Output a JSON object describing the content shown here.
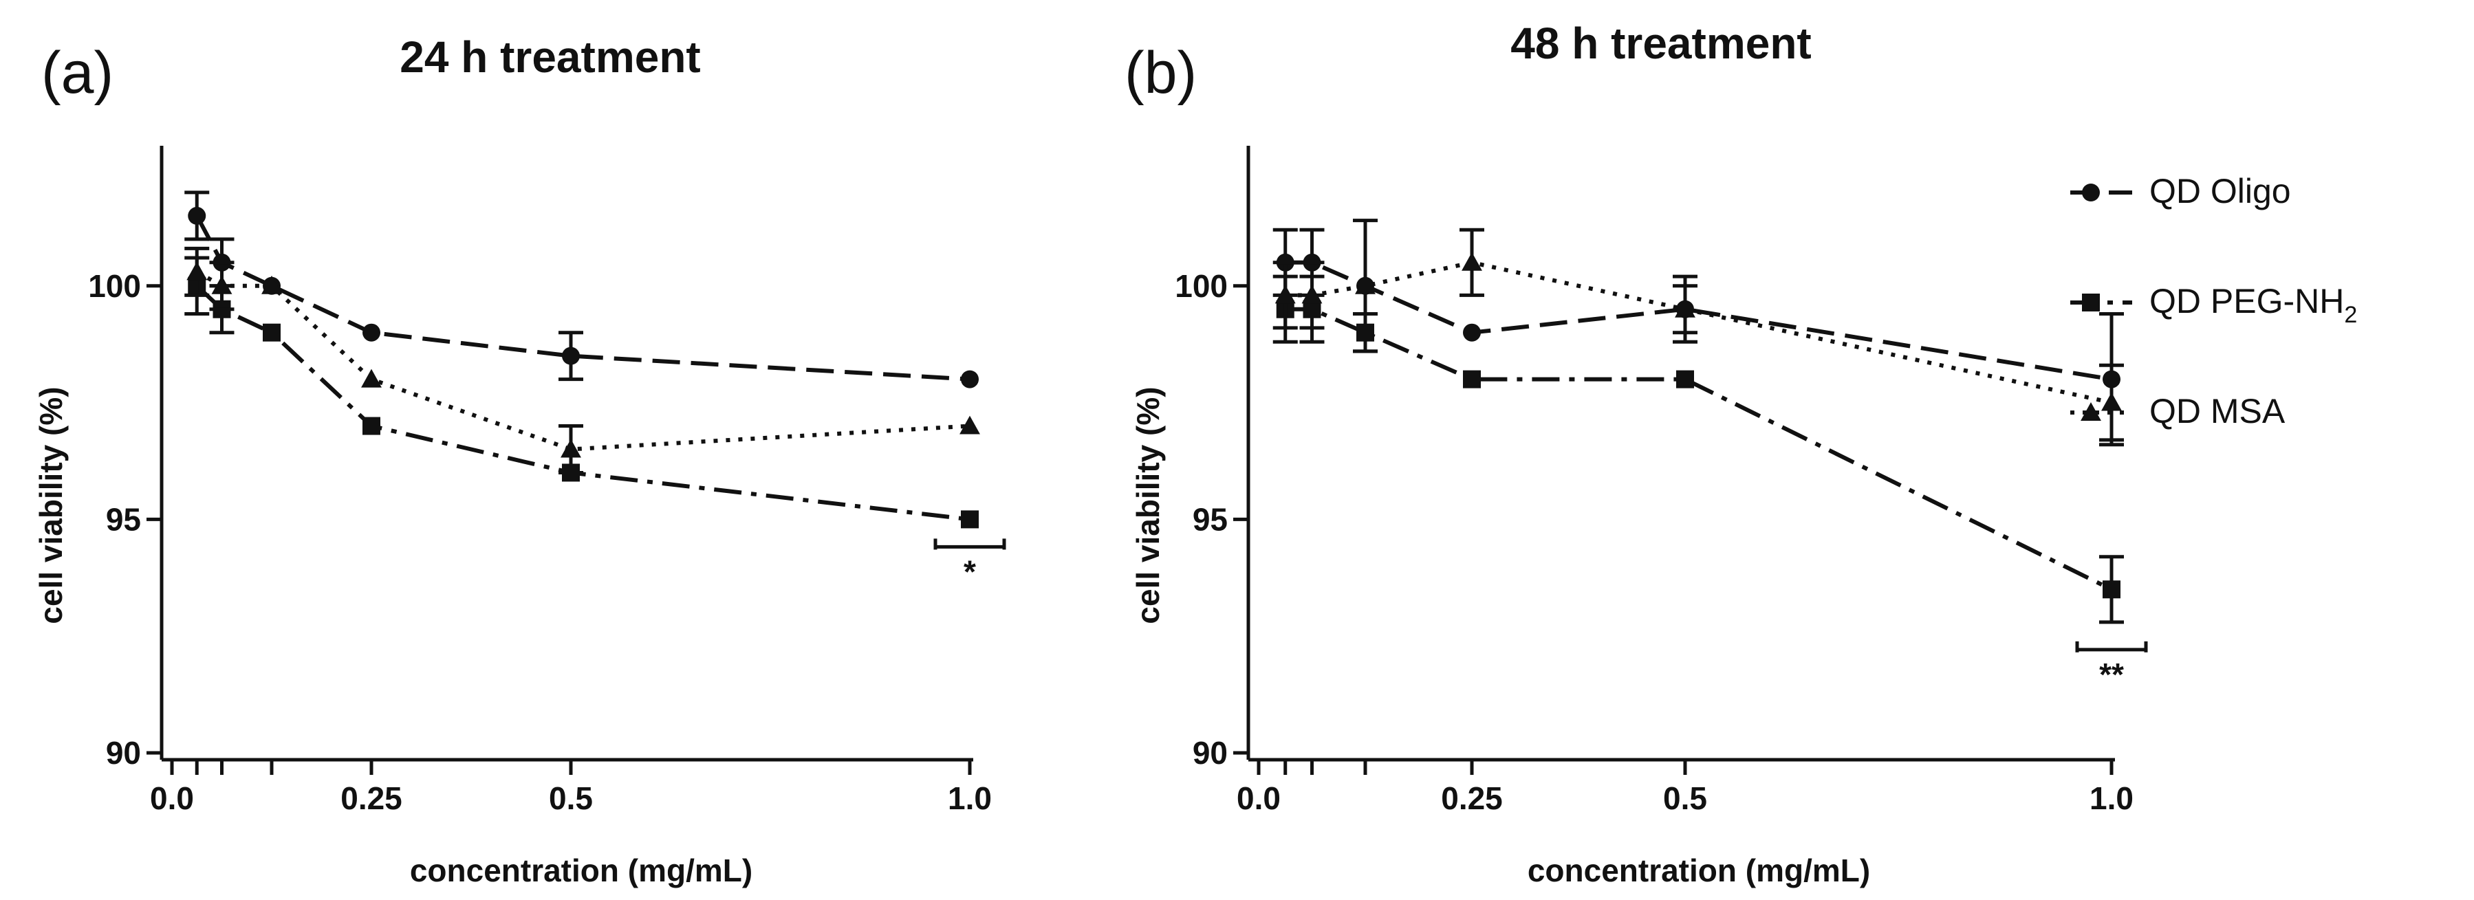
{
  "chart_data": [
    {
      "type": "line",
      "panel_label": "(a)",
      "title": "24 h  treatment",
      "xlabel": "concentration (mg/mL)",
      "ylabel": "cell viability (%)",
      "xlim": [
        0,
        1.0
      ],
      "ylim": [
        90,
        103
      ],
      "x_ticks": [
        0.0,
        0.25,
        0.5,
        1.0
      ],
      "x_tick_labels": [
        "0.0",
        "0.25",
        "0.5",
        "1.0"
      ],
      "x_minor_ticks": [
        0.03125,
        0.0625,
        0.125
      ],
      "y_ticks": [
        90,
        95,
        100
      ],
      "y_tick_labels": [
        "90",
        "95",
        "100"
      ],
      "x": [
        0.03125,
        0.0625,
        0.125,
        0.25,
        0.5,
        1.0
      ],
      "series": [
        {
          "name": "QD Oligo",
          "marker": "circle",
          "dash": "dashed",
          "values": [
            101.5,
            100.5,
            100.0,
            99.0,
            98.5,
            98.0
          ],
          "errors": [
            0.5,
            0.5,
            0,
            0,
            0.5,
            0
          ]
        },
        {
          "name": "QD PEG-NH2",
          "marker": "square",
          "dash": "dashdot",
          "values": [
            100.0,
            99.5,
            99.0,
            97.0,
            96.0,
            95.0
          ],
          "errors": [
            0.6,
            0.5,
            0,
            0,
            0,
            0
          ]
        },
        {
          "name": "QD MSA",
          "marker": "triangle",
          "dash": "dotted",
          "values": [
            100.3,
            100.0,
            100.0,
            98.0,
            96.5,
            97.0
          ],
          "errors": [
            0.5,
            0.5,
            0,
            0,
            0.5,
            0
          ]
        }
      ],
      "annotations": [
        {
          "text": "*",
          "x": 1.0
        }
      ]
    },
    {
      "type": "line",
      "panel_label": "(b)",
      "title": "48 h  treatment",
      "xlabel": "concentration (mg/mL)",
      "ylabel": "cell viability (%)",
      "xlim": [
        0,
        1.0
      ],
      "ylim": [
        90,
        103
      ],
      "x_ticks": [
        0.0,
        0.25,
        0.5,
        1.0
      ],
      "x_tick_labels": [
        "0.0",
        "0.25",
        "0.5",
        "1.0"
      ],
      "x_minor_ticks": [
        0.03125,
        0.0625,
        0.125
      ],
      "y_ticks": [
        90,
        95,
        100
      ],
      "y_tick_labels": [
        "90",
        "95",
        "100"
      ],
      "x": [
        0.03125,
        0.0625,
        0.125,
        0.25,
        0.5,
        1.0
      ],
      "series": [
        {
          "name": "QD Oligo",
          "marker": "circle",
          "dash": "dashed",
          "values": [
            100.5,
            100.5,
            100.0,
            99.0,
            99.5,
            98.0
          ],
          "errors": [
            0.7,
            0.7,
            0,
            0,
            0.7,
            1.4
          ]
        },
        {
          "name": "QD PEG-NH2",
          "marker": "square",
          "dash": "dashdot",
          "values": [
            99.5,
            99.5,
            99.0,
            98.0,
            98.0,
            93.5
          ],
          "errors": [
            0.7,
            0.7,
            0.4,
            0,
            0,
            0.7
          ]
        },
        {
          "name": "QD MSA",
          "marker": "triangle",
          "dash": "dotted",
          "values": [
            99.8,
            99.8,
            100.0,
            100.5,
            99.5,
            97.5
          ],
          "errors": [
            0.7,
            0.7,
            1.4,
            0.7,
            0.5,
            0.8
          ]
        }
      ],
      "annotations": [
        {
          "text": "**",
          "x": 1.0
        }
      ]
    }
  ],
  "legend": {
    "position": "right",
    "entries": [
      {
        "label": "QD Oligo",
        "marker": "circle",
        "dash": "dashed"
      },
      {
        "label_main": "QD PEG-NH",
        "label_sub": "2",
        "marker": "square",
        "dash": "dashdot"
      },
      {
        "label": "QD MSA",
        "marker": "triangle",
        "dash": "dotted"
      }
    ]
  }
}
